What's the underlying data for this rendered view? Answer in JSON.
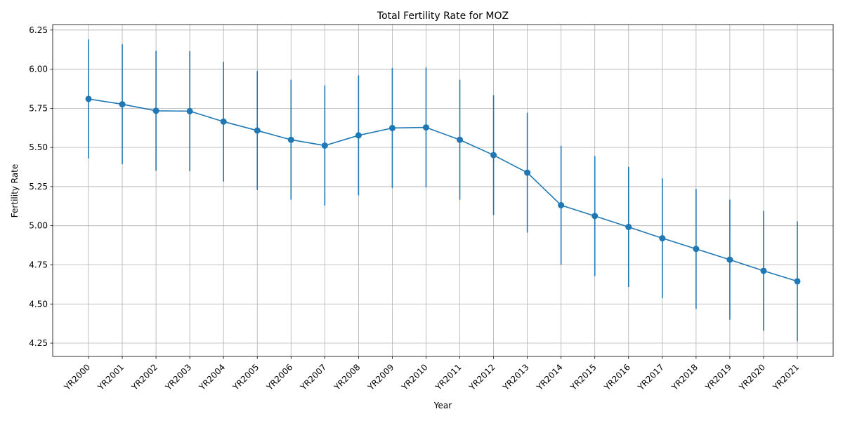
{
  "chart_data": {
    "type": "line",
    "title": "Total Fertility Rate for MOZ",
    "xlabel": "Year",
    "ylabel": "Fertility Rate",
    "categories": [
      "YR2000",
      "YR2001",
      "YR2002",
      "YR2003",
      "YR2004",
      "YR2005",
      "YR2006",
      "YR2007",
      "YR2008",
      "YR2009",
      "YR2010",
      "YR2011",
      "YR2012",
      "YR2013",
      "YR2014",
      "YR2015",
      "YR2016",
      "YR2017",
      "YR2018",
      "YR2019",
      "YR2020",
      "YR2021"
    ],
    "series": [
      {
        "values": [
          5.81,
          5.776,
          5.734,
          5.732,
          5.665,
          5.608,
          5.549,
          5.512,
          5.577,
          5.624,
          5.628,
          5.549,
          5.451,
          5.339,
          5.131,
          5.062,
          4.992,
          4.92,
          4.852,
          4.783,
          4.712,
          4.645
        ],
        "error": [
          0.38,
          0.383,
          0.383,
          0.383,
          0.383,
          0.38,
          0.383,
          0.383,
          0.383,
          0.383,
          0.383,
          0.383,
          0.383,
          0.383,
          0.38,
          0.383,
          0.383,
          0.383,
          0.383,
          0.383,
          0.383,
          0.383
        ]
      }
    ],
    "ylim": [
      4.165,
      6.285
    ],
    "yticks": [
      "4.25",
      "4.50",
      "4.75",
      "5.00",
      "5.25",
      "5.50",
      "5.75",
      "6.00",
      "6.25"
    ],
    "grid": true,
    "color": "#1f77b4"
  }
}
